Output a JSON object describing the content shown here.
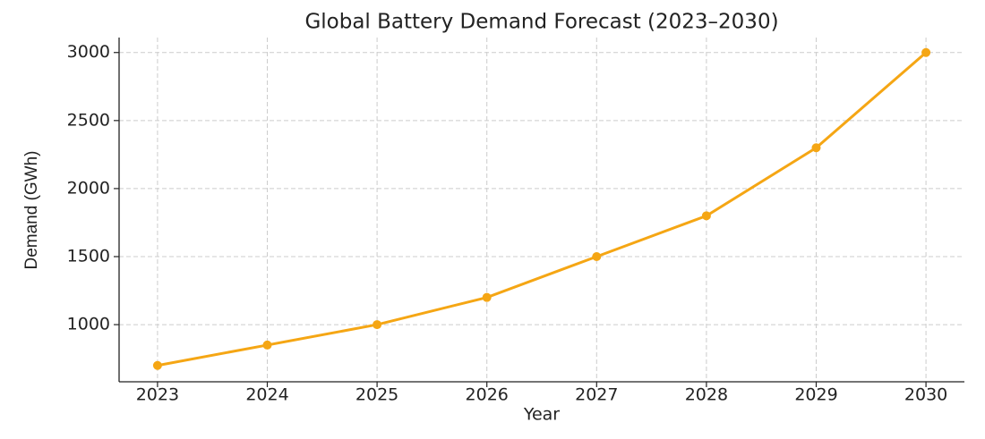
{
  "chart_data": {
    "type": "line",
    "title": "Global Battery Demand Forecast (2023–2030)",
    "x_label": "Year",
    "y_label": "Demand (GWh)",
    "x": [
      2023,
      2024,
      2025,
      2026,
      2027,
      2028,
      2029,
      2030
    ],
    "series": [
      {
        "name": "Demand",
        "color": "#f5a614",
        "values": [
          700,
          850,
          1000,
          1200,
          1500,
          1800,
          2300,
          3000
        ]
      }
    ],
    "xlim": [
      2022.65,
      2030.35
    ],
    "xticks": [
      2023,
      2024,
      2025,
      2026,
      2027,
      2028,
      2029,
      2030
    ],
    "ylim": [
      580,
      3110
    ],
    "yticks": [
      1000,
      1500,
      2000,
      2500,
      3000
    ],
    "grid": true
  }
}
